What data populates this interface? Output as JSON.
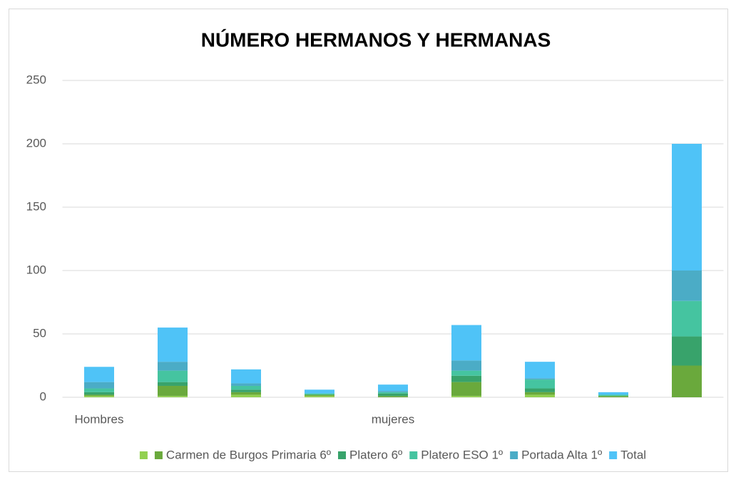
{
  "chart_data": {
    "type": "stacked_bar",
    "title": "NÚMERO HERMANOS Y HERMANAS",
    "categories": [
      "Hombres",
      null,
      null,
      null,
      "mujeres",
      null,
      null,
      null,
      null
    ],
    "series": [
      {
        "name": null,
        "color": "#92d050",
        "values": [
          1,
          1,
          2,
          1,
          0,
          1,
          2,
          0,
          0
        ]
      },
      {
        "name": "Carmen de Burgos Primaria 6º",
        "color": "#6aa93c",
        "values": [
          1,
          8,
          2,
          1,
          1,
          11,
          2,
          1,
          25
        ]
      },
      {
        "name": "Platero 6º",
        "color": "#38a36b",
        "values": [
          2,
          3,
          2,
          0,
          2,
          5,
          3,
          0,
          23
        ]
      },
      {
        "name": "Platero ESO 1º",
        "color": "#45c4a0",
        "values": [
          3,
          9,
          3,
          1,
          1,
          4,
          7,
          1,
          28
        ]
      },
      {
        "name": "Portada Alta 1º",
        "color": "#4bacc6",
        "values": [
          5,
          7,
          2,
          0,
          1,
          8,
          1,
          0,
          24
        ]
      },
      {
        "name": "Total",
        "color": "#4fc3f7",
        "values": [
          12,
          27,
          11,
          3,
          5,
          28,
          13,
          2,
          100
        ]
      }
    ],
    "ylim": [
      0,
      250
    ],
    "yticks": [
      0,
      50,
      100,
      150,
      200,
      250
    ],
    "grid": true,
    "legend": "bottom"
  }
}
